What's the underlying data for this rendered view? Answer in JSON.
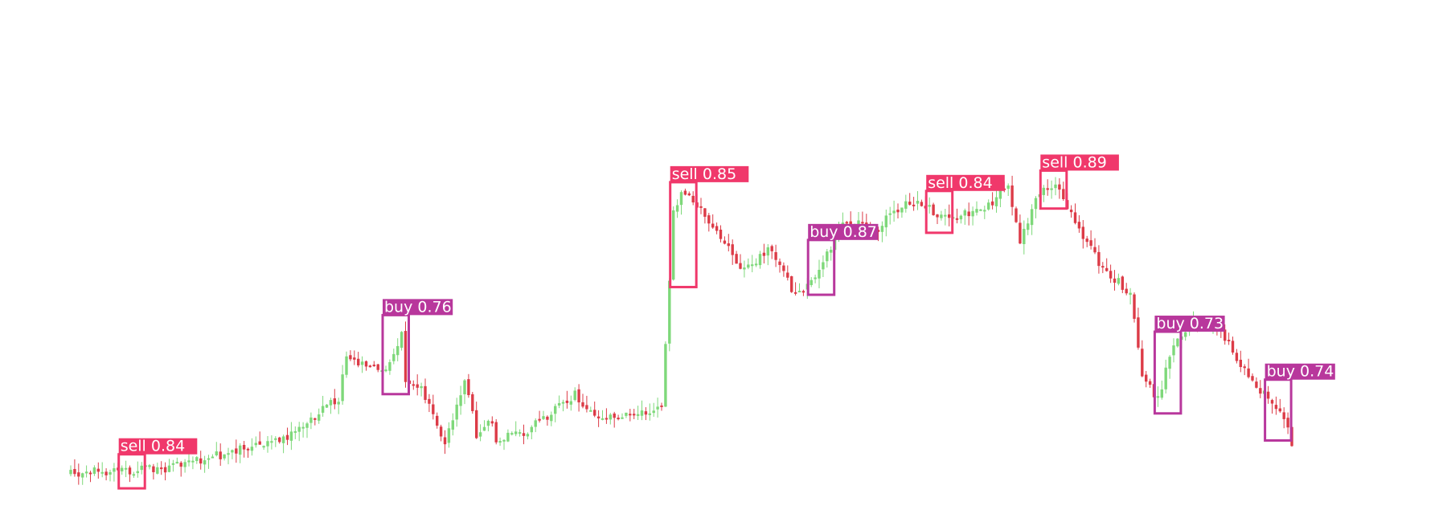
{
  "chart_data": {
    "type": "candlestick",
    "title": "",
    "xlabel": "",
    "ylabel": "",
    "axes_visible": false,
    "grid": false,
    "colors": {
      "up": "#7ed87a",
      "down": "#dc3b47",
      "sell_box": "#f0386b",
      "buy_box": "#b8379c",
      "background": "#ffffff"
    },
    "price_range": [
      0,
      100
    ],
    "trend": [
      [
        0,
        5
      ],
      [
        25,
        6
      ],
      [
        55,
        13
      ],
      [
        63,
        19
      ],
      [
        68,
        22
      ],
      [
        70,
        32
      ],
      [
        80,
        28
      ],
      [
        84,
        37
      ],
      [
        85,
        26
      ],
      [
        89,
        24
      ],
      [
        95,
        12
      ],
      [
        100,
        27
      ],
      [
        103,
        14
      ],
      [
        106,
        18
      ],
      [
        108,
        13
      ],
      [
        115,
        14
      ],
      [
        128,
        23
      ],
      [
        133,
        18
      ],
      [
        145,
        19
      ],
      [
        150,
        20
      ],
      [
        153,
        65
      ],
      [
        155,
        70
      ],
      [
        160,
        66
      ],
      [
        165,
        60
      ],
      [
        170,
        52
      ],
      [
        178,
        57
      ],
      [
        184,
        46
      ],
      [
        190,
        52
      ],
      [
        196,
        63
      ],
      [
        205,
        62
      ],
      [
        212,
        68
      ],
      [
        217,
        67
      ],
      [
        222,
        64
      ],
      [
        232,
        66
      ],
      [
        238,
        72
      ],
      [
        241,
        58
      ],
      [
        245,
        69
      ],
      [
        250,
        72
      ],
      [
        256,
        62
      ],
      [
        262,
        52
      ],
      [
        265,
        50
      ],
      [
        269,
        47
      ],
      [
        272,
        28
      ],
      [
        276,
        22
      ],
      [
        280,
        35
      ],
      [
        285,
        40
      ],
      [
        292,
        38
      ],
      [
        298,
        29
      ],
      [
        304,
        22
      ],
      [
        308,
        18
      ],
      [
        310,
        12
      ]
    ],
    "detections": [
      {
        "label": "sell 0.84",
        "kind": "sell",
        "candle_index": 15
      },
      {
        "label": "buy 0.76",
        "kind": "buy",
        "candle_index": 82
      },
      {
        "label": "sell 0.85",
        "kind": "sell",
        "candle_index": 155
      },
      {
        "label": "buy 0.87",
        "kind": "buy",
        "candle_index": 190
      },
      {
        "label": "sell 0.84",
        "kind": "sell",
        "candle_index": 220
      },
      {
        "label": "sell 0.89",
        "kind": "sell",
        "candle_index": 249
      },
      {
        "label": "buy 0.73",
        "kind": "buy",
        "candle_index": 278
      },
      {
        "label": "buy 0.74",
        "kind": "buy",
        "candle_index": 306
      }
    ]
  }
}
